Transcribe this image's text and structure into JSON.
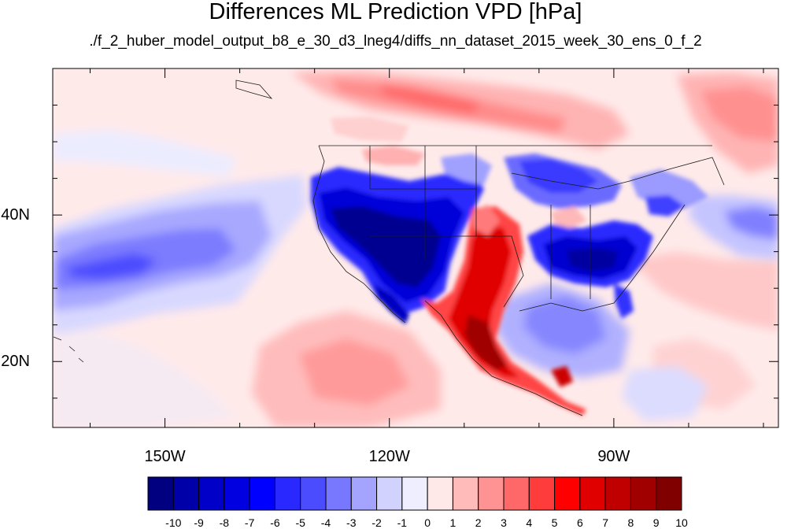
{
  "title": "Differences ML Prediction VPD [hPa]",
  "subtitle": "./f_2_huber_model_output_b8_e_30_d3_lneg4/diffs_nn_dataset_2015_week_30_ens_0_f_2",
  "map": {
    "lon_range": [
      -165,
      -68
    ],
    "lat_range": [
      11,
      60
    ],
    "lon_labels": [
      {
        "lon": -150,
        "text": "150W"
      },
      {
        "lon": -120,
        "text": "120W"
      },
      {
        "lon": -90,
        "text": "90W"
      }
    ],
    "lat_labels": [
      {
        "lat": 40,
        "text": "40N"
      },
      {
        "lat": 20,
        "text": "20N"
      }
    ]
  },
  "colorbar": {
    "labels": [
      "-10",
      "-9",
      "-8",
      "-7",
      "-6",
      "-5",
      "-4",
      "-3",
      "-2",
      "-1",
      "0",
      "1",
      "2",
      "3",
      "4",
      "5",
      "6",
      "7",
      "8",
      "9",
      "10"
    ],
    "colors": [
      "#000080",
      "#0000a8",
      "#0000c8",
      "#0000e0",
      "#0000ff",
      "#2828ff",
      "#4c4cff",
      "#7878ff",
      "#a4a4ff",
      "#d2d2ff",
      "#eeeeff",
      "#ffe8e8",
      "#ffbaba",
      "#ff9292",
      "#ff6868",
      "#ff3c3c",
      "#ff0000",
      "#e00000",
      "#c00000",
      "#a00000",
      "#800000"
    ]
  }
}
